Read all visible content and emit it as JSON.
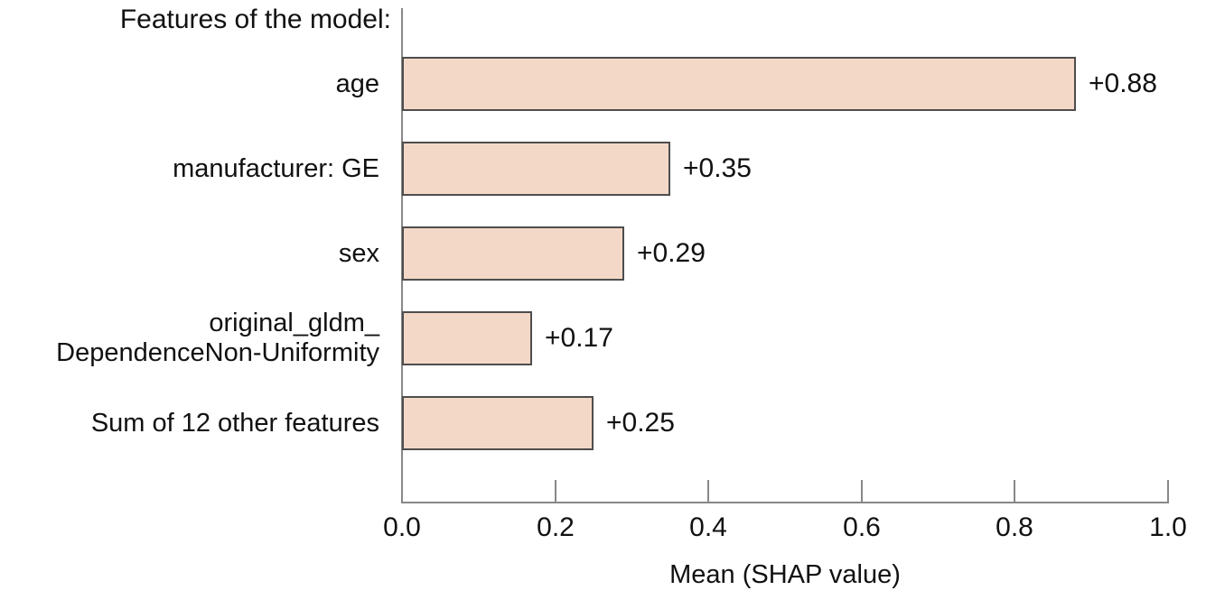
{
  "chart_data": {
    "type": "bar",
    "orientation": "horizontal",
    "title": "Features of the model:",
    "xlabel": "Mean (SHAP value)",
    "categories": [
      [
        "age"
      ],
      [
        "manufacturer: GE"
      ],
      [
        "sex"
      ],
      [
        "original_gldm_",
        "DependenceNon-Uniformity"
      ],
      [
        "Sum of 12 other features"
      ]
    ],
    "values": [
      0.88,
      0.35,
      0.29,
      0.17,
      0.25
    ],
    "value_labels": [
      "+0.88",
      "+0.35",
      "+0.29",
      "+0.17",
      "+0.25"
    ],
    "xlim": [
      0.0,
      1.0
    ],
    "xticks": [
      {
        "value": 0.0,
        "label": "0.0"
      },
      {
        "value": 0.2,
        "label": "0.2"
      },
      {
        "value": 0.4,
        "label": "0.4"
      },
      {
        "value": 0.6,
        "label": "0.6"
      },
      {
        "value": 0.8,
        "label": "0.8"
      },
      {
        "value": 1.0,
        "label": "1.0"
      }
    ],
    "grid": false,
    "legend": false,
    "colors": {
      "bar_fill": "#f4d8c7",
      "bar_border": "#4d4d4d",
      "axis": "#888888",
      "text": "#111111"
    }
  }
}
